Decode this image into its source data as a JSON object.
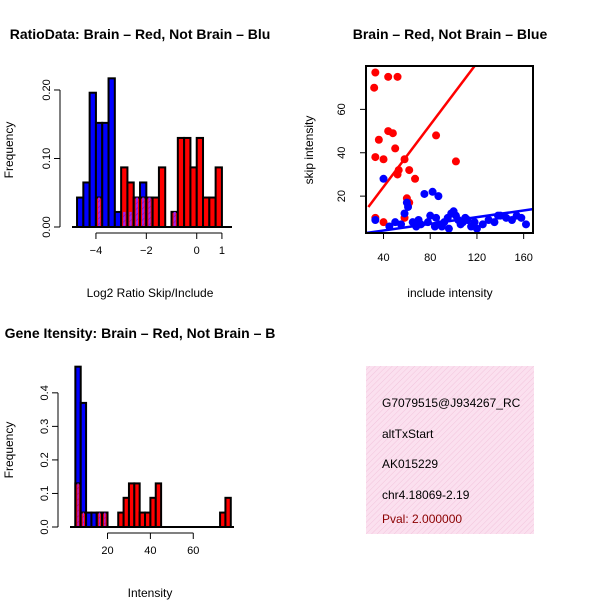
{
  "colors": {
    "brain": "#ff0000",
    "not_brain": "#0000ff",
    "overlap": "#a020f0",
    "info_bg": "#fbe0ef",
    "pval": "#8b0000"
  },
  "chart_data": [
    {
      "id": "ratio",
      "type": "bar",
      "title": "RatioData: Brain – Red, Not Brain – Blu",
      "xlabel": "Log2 Ratio Skip/Include",
      "ylabel": "Frequency",
      "xlim": [
        -4.95,
        1.4
      ],
      "ylim": [
        0,
        0.235
      ],
      "xticks": [
        -4,
        -2,
        0,
        1
      ],
      "yticks": [
        0.0,
        0.1,
        0.2
      ],
      "ytick_labels": [
        "0.00",
        "0.10",
        "0.20"
      ],
      "bin_width": 0.25,
      "bin_starts": [
        -4.75,
        -4.5,
        -4.25,
        -4.0,
        -3.75,
        -3.5,
        -3.25,
        -3.0,
        -2.75,
        -2.5,
        -2.25,
        -2.0,
        -1.75,
        -1.5,
        -1.25,
        -1.0,
        -0.75,
        -0.5,
        -0.25,
        0.0,
        0.25,
        0.5,
        0.75
      ],
      "series": [
        {
          "name": "Not Brain",
          "color": "#0000ff",
          "values": [
            0.043,
            0.065,
            0.196,
            0.152,
            0.152,
            0.217,
            0.022,
            0.022,
            0.022,
            0.043,
            0.065,
            0.043,
            0.0,
            0.0,
            0.0,
            0.022,
            0.0,
            0.0,
            0.0,
            0.0,
            0.0,
            0.0,
            0.0
          ]
        },
        {
          "name": "Brain",
          "color": "#ff0000",
          "values": [
            0.0,
            0.0,
            0.0,
            0.043,
            0.0,
            0.0,
            0.0,
            0.087,
            0.065,
            0.043,
            0.043,
            0.043,
            0.043,
            0.087,
            0.0,
            0.022,
            0.13,
            0.13,
            0.087,
            0.13,
            0.043,
            0.043,
            0.087
          ]
        }
      ]
    },
    {
      "id": "scatter",
      "type": "scatter",
      "title": "Brain – Red, Not Brain – Blue",
      "xlabel": "include intensity",
      "ylabel": "skip intensity",
      "xlim": [
        25,
        168
      ],
      "ylim": [
        3,
        80
      ],
      "xticks": [
        40,
        80,
        120,
        160
      ],
      "yticks": [
        20,
        40,
        60
      ],
      "series": [
        {
          "name": "Brain",
          "color": "#ff0000",
          "points": [
            [
              32,
              70
            ],
            [
              33,
              77
            ],
            [
              44,
              75
            ],
            [
              52,
              75
            ],
            [
              33,
              38
            ],
            [
              36,
              46
            ],
            [
              44,
              50
            ],
            [
              48,
              49
            ],
            [
              40,
              37
            ],
            [
              50,
              42
            ],
            [
              52,
              30
            ],
            [
              53,
              32
            ],
            [
              58,
              37
            ],
            [
              62,
              32
            ],
            [
              60,
              19
            ],
            [
              62,
              17
            ],
            [
              67,
              28
            ],
            [
              85,
              48
            ],
            [
              102,
              36
            ],
            [
              40,
              8
            ],
            [
              33,
              10
            ],
            [
              58,
              10
            ]
          ],
          "fit": [
            [
              27,
              15
            ],
            [
              118,
              80
            ]
          ]
        },
        {
          "name": "Not Brain",
          "color": "#0000ff",
          "points": [
            [
              33,
              9
            ],
            [
              40,
              28
            ],
            [
              58,
              12
            ],
            [
              60,
              17
            ],
            [
              61,
              15
            ],
            [
              75,
              21
            ],
            [
              82,
              22
            ],
            [
              87,
              20
            ],
            [
              50,
              8
            ],
            [
              55,
              7
            ],
            [
              65,
              8
            ],
            [
              70,
              9
            ],
            [
              72,
              7
            ],
            [
              78,
              8
            ],
            [
              80,
              11
            ],
            [
              85,
              10
            ],
            [
              88,
              7
            ],
            [
              90,
              6
            ],
            [
              92,
              8
            ],
            [
              95,
              10
            ],
            [
              98,
              12
            ],
            [
              100,
              13
            ],
            [
              102,
              11
            ],
            [
              104,
              9
            ],
            [
              106,
              7
            ],
            [
              108,
              8
            ],
            [
              110,
              10
            ],
            [
              112,
              9
            ],
            [
              115,
              6
            ],
            [
              118,
              8
            ],
            [
              120,
              5
            ],
            [
              125,
              7
            ],
            [
              130,
              9
            ],
            [
              135,
              8
            ],
            [
              138,
              11
            ],
            [
              140,
              11
            ],
            [
              145,
              10
            ],
            [
              150,
              9
            ],
            [
              154,
              11
            ],
            [
              158,
              10
            ],
            [
              162,
              7
            ],
            [
              96,
              5
            ],
            [
              84,
              6
            ],
            [
              68,
              6
            ],
            [
              45,
              6
            ]
          ],
          "fit": [
            [
              25,
              3
            ],
            [
              168,
              14
            ]
          ]
        }
      ]
    },
    {
      "id": "intensity",
      "type": "bar",
      "title": "Gene Itensity: Brain – Red, Not Brain – B",
      "xlabel": "Intensity",
      "ylabel": "Frequency",
      "xlim": [
        2.5,
        79
      ],
      "ylim": [
        0,
        0.48
      ],
      "xticks": [
        20,
        40,
        60
      ],
      "yticks": [
        0.0,
        0.1,
        0.2,
        0.3,
        0.4
      ],
      "ytick_labels": [
        "0.0",
        "0.1",
        "0.2",
        "0.3",
        "0.4"
      ],
      "bin_width": 2.5,
      "bin_starts": [
        5,
        7.5,
        10,
        12.5,
        15,
        17.5,
        20,
        22.5,
        25,
        27.5,
        30,
        32.5,
        35,
        37.5,
        40,
        42.5,
        45,
        47.5,
        50,
        52.5,
        55,
        57.5,
        60,
        62.5,
        65,
        67.5,
        70,
        72.5,
        75
      ],
      "series": [
        {
          "name": "Not Brain",
          "color": "#0000ff",
          "values": [
            0.478,
            0.37,
            0.043,
            0.043,
            0.043,
            0.043,
            0.0,
            0.0,
            0.0,
            0.0,
            0.0,
            0.0,
            0.0,
            0.0,
            0.0,
            0.0,
            0.0,
            0.0,
            0.0,
            0.0,
            0.0,
            0.0,
            0.0,
            0.0,
            0.0,
            0.0,
            0.0,
            0.0,
            0.0
          ]
        },
        {
          "name": "Brain",
          "color": "#ff0000",
          "values": [
            0.13,
            0.043,
            0.0,
            0.0,
            0.043,
            0.043,
            0.0,
            0.0,
            0.043,
            0.087,
            0.13,
            0.13,
            0.043,
            0.043,
            0.087,
            0.13,
            0.0,
            0.0,
            0.0,
            0.0,
            0.0,
            0.0,
            0.0,
            0.0,
            0.0,
            0.0,
            0.0,
            0.043,
            0.087
          ]
        }
      ]
    }
  ],
  "info_panel": {
    "gene_id": "G7079515@J934267_RC",
    "event_type": "altTxStart",
    "accession": "AK015229",
    "location": "chr4.18069-2.19",
    "pval": "Pval: 2.000000"
  }
}
